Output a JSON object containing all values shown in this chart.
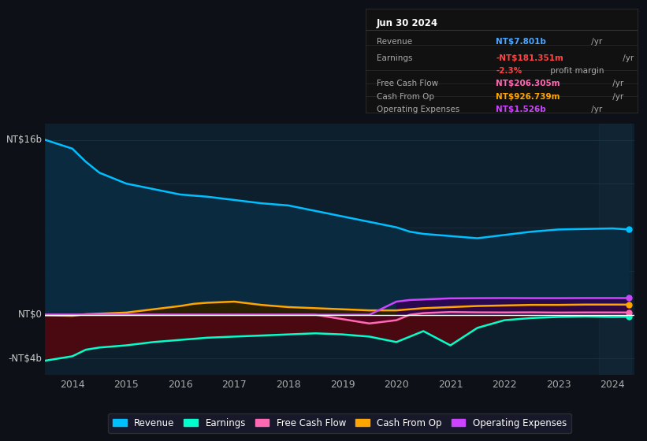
{
  "bg_color": "#0d1117",
  "plot_bg_color": "#0d1f2d",
  "grid_color": "#1e3a4a",
  "zero_line_color": "#ffffff",
  "title_box": {
    "date": "Jun 30 2024",
    "rows": [
      {
        "label": "Revenue",
        "value": "NT$7.801b",
        "suffix": " /yr",
        "value_color": "#4da6ff"
      },
      {
        "label": "Earnings",
        "value": "-NT$181.351m",
        "suffix": " /yr",
        "value_color": "#ff4444"
      },
      {
        "label": "",
        "value": "-2.3%",
        "suffix": " profit margin",
        "value_color": "#ff4444"
      },
      {
        "label": "Free Cash Flow",
        "value": "NT$206.305m",
        "suffix": " /yr",
        "value_color": "#ff69b4"
      },
      {
        "label": "Cash From Op",
        "value": "NT$926.739m",
        "suffix": " /yr",
        "value_color": "#ffa500"
      },
      {
        "label": "Operating Expenses",
        "value": "NT$1.526b",
        "suffix": " /yr",
        "value_color": "#cc44ff"
      }
    ]
  },
  "years": [
    2013.5,
    2014,
    2014.25,
    2014.5,
    2015,
    2015.5,
    2016,
    2016.25,
    2016.5,
    2017,
    2017.5,
    2018,
    2018.5,
    2019,
    2019.5,
    2020,
    2020.25,
    2020.5,
    2021,
    2021.5,
    2022,
    2022.5,
    2023,
    2023.5,
    2024,
    2024.3
  ],
  "revenue": [
    16.0,
    15.2,
    14.0,
    13.0,
    12.0,
    11.5,
    11.0,
    10.9,
    10.8,
    10.5,
    10.2,
    10.0,
    9.5,
    9.0,
    8.5,
    8.0,
    7.6,
    7.4,
    7.2,
    7.0,
    7.3,
    7.6,
    7.8,
    7.85,
    7.9,
    7.801
  ],
  "earnings": [
    -4.2,
    -3.8,
    -3.2,
    -3.0,
    -2.8,
    -2.5,
    -2.3,
    -2.2,
    -2.1,
    -2.0,
    -1.9,
    -1.8,
    -1.7,
    -1.8,
    -2.0,
    -2.5,
    -2.0,
    -1.5,
    -2.8,
    -1.2,
    -0.5,
    -0.3,
    -0.2,
    -0.15,
    -0.2,
    -0.181
  ],
  "free_cash_flow": [
    0.0,
    0.0,
    0.0,
    0.0,
    0.0,
    0.0,
    0.0,
    0.0,
    0.0,
    0.0,
    0.0,
    0.0,
    0.0,
    -0.4,
    -0.8,
    -0.5,
    0.0,
    0.15,
    0.25,
    0.22,
    0.21,
    0.22,
    0.2,
    0.21,
    0.21,
    0.206
  ],
  "cash_from_op": [
    -0.05,
    -0.1,
    0.05,
    0.1,
    0.2,
    0.5,
    0.8,
    1.0,
    1.1,
    1.2,
    0.9,
    0.7,
    0.6,
    0.5,
    0.4,
    0.4,
    0.5,
    0.6,
    0.7,
    0.8,
    0.85,
    0.9,
    0.9,
    0.93,
    0.93,
    0.927
  ],
  "operating_expenses": [
    0.0,
    0.0,
    0.0,
    0.0,
    0.0,
    0.0,
    0.0,
    0.0,
    0.0,
    0.0,
    0.0,
    0.0,
    0.0,
    0.0,
    0.0,
    1.2,
    1.35,
    1.4,
    1.5,
    1.52,
    1.53,
    1.52,
    1.52,
    1.53,
    1.53,
    1.526
  ],
  "ylim": [
    -5.5,
    17.5
  ],
  "ymin_data": -5,
  "ymax_data": 16,
  "xticks": [
    2014,
    2015,
    2016,
    2017,
    2018,
    2019,
    2020,
    2021,
    2022,
    2023,
    2024
  ],
  "colors": {
    "revenue_line": "#00bfff",
    "revenue_fill": "#0a2a40",
    "earnings_line": "#00ffcc",
    "earnings_fill_neg": "#4a0810",
    "free_cash_flow_line": "#ff69b4",
    "free_cash_flow_fill_neg": "#550022",
    "cash_from_op_line": "#ffa500",
    "cash_from_op_fill": "#2a2000",
    "operating_expenses_line": "#cc44ff",
    "operating_expenses_fill": "#330055",
    "highlight_bg": "#15293a"
  },
  "legend": [
    {
      "label": "Revenue",
      "color": "#00bfff"
    },
    {
      "label": "Earnings",
      "color": "#00ffcc"
    },
    {
      "label": "Free Cash Flow",
      "color": "#ff69b4"
    },
    {
      "label": "Cash From Op",
      "color": "#ffa500"
    },
    {
      "label": "Operating Expenses",
      "color": "#cc44ff"
    }
  ]
}
